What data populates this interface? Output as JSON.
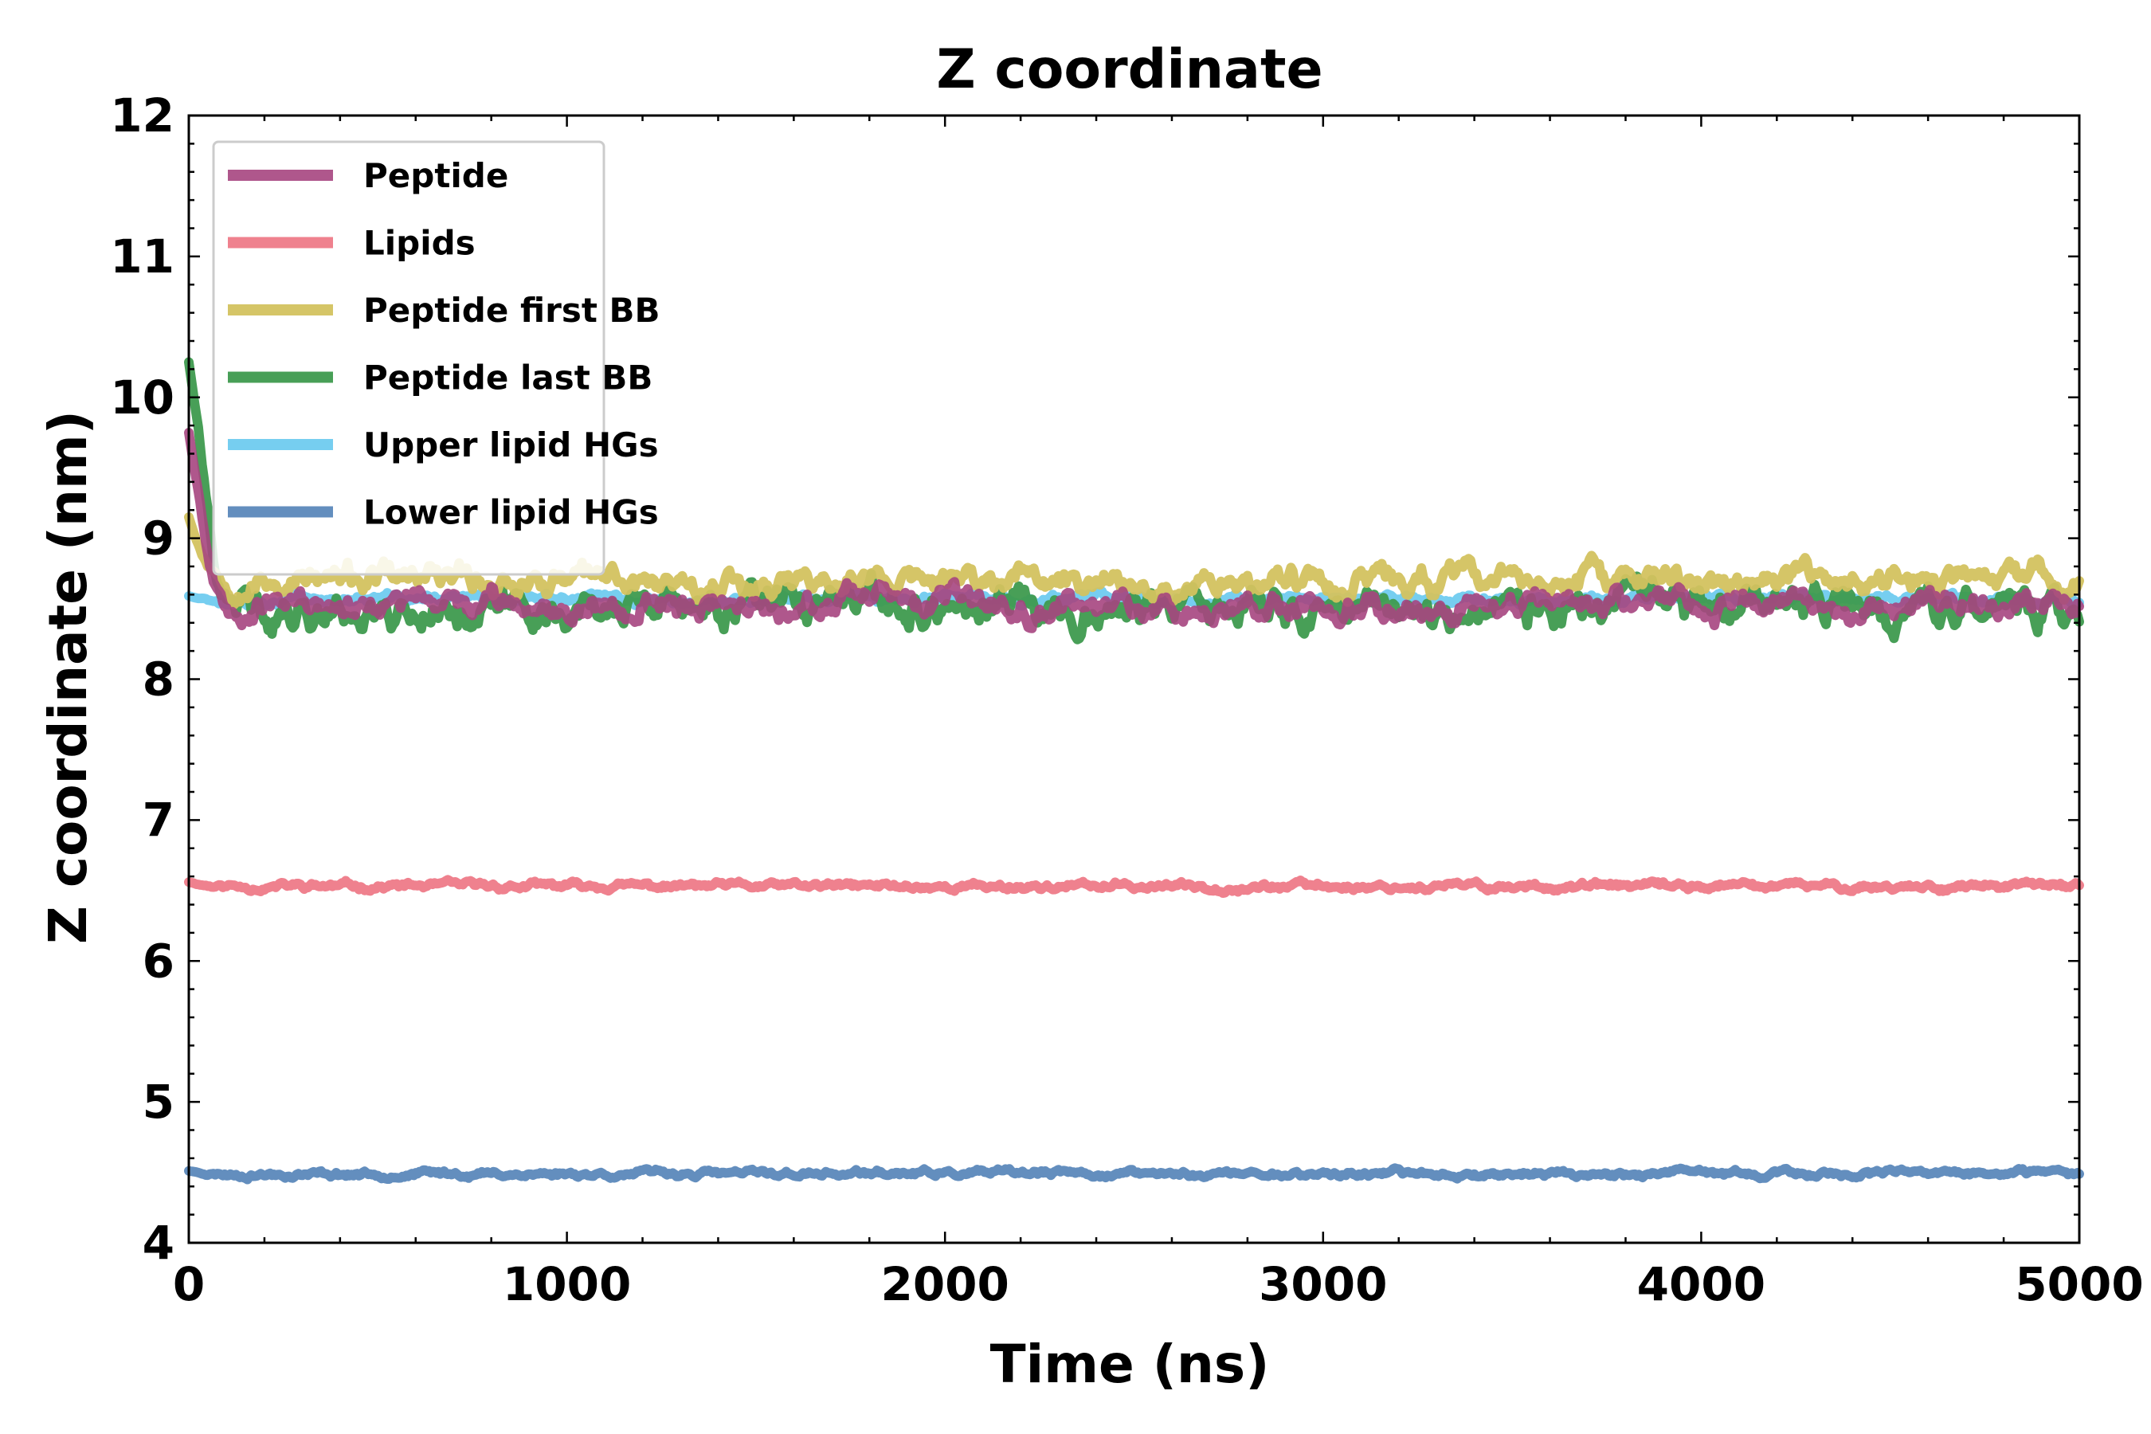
{
  "chart_data": {
    "type": "line",
    "title": "Z coordinate",
    "xlabel": "Time (ns)",
    "ylabel": "Z coordinate (nm)",
    "xlim": [
      0,
      5000
    ],
    "ylim": [
      4,
      12
    ],
    "x_ticks": [
      "0",
      "1000",
      "2000",
      "3000",
      "4000",
      "5000"
    ],
    "y_ticks": [
      "4",
      "5",
      "6",
      "7",
      "8",
      "9",
      "10",
      "11",
      "12"
    ],
    "grid": false,
    "legend_position": "top-left",
    "series": [
      {
        "name": "Lipids",
        "color": "#EE7A88",
        "width": 12,
        "opacity": 0.95,
        "base": 6.53,
        "amp": 0.025,
        "seed": 11,
        "start": [
          [
            0,
            6.56
          ],
          [
            100,
            6.53
          ]
        ]
      },
      {
        "name": "Lower lipid HGs",
        "color": "#5B88BA",
        "width": 12,
        "opacity": 0.95,
        "base": 4.49,
        "amp": 0.022,
        "seed": 23,
        "start": [
          [
            0,
            4.51
          ],
          [
            100,
            4.49
          ]
        ]
      },
      {
        "name": "Upper lipid HGs",
        "color": "#6FCBEF",
        "width": 12,
        "opacity": 0.95,
        "base": 8.57,
        "amp": 0.03,
        "seed": 37,
        "start": [
          [
            0,
            8.59
          ],
          [
            100,
            8.57
          ]
        ]
      },
      {
        "name": "Peptide last BB",
        "color": "#3E9A4E",
        "width": 12,
        "opacity": 0.95,
        "base": 8.5,
        "amp": 0.12,
        "seed": 41,
        "start": [
          [
            0,
            10.25
          ],
          [
            25,
            10.1
          ],
          [
            50,
            9.6
          ],
          [
            70,
            8.9
          ],
          [
            90,
            8.55
          ],
          [
            130,
            8.35
          ]
        ]
      },
      {
        "name": "Peptide first BB",
        "color": "#D3C25F",
        "width": 12,
        "opacity": 0.95,
        "base": 8.7,
        "amp": 0.09,
        "seed": 53,
        "start": [
          [
            0,
            9.15
          ],
          [
            40,
            8.95
          ],
          [
            80,
            8.8
          ],
          [
            130,
            8.7
          ]
        ]
      },
      {
        "name": "Peptide",
        "color": "#A6457F",
        "width": 12,
        "opacity": 0.9,
        "base": 8.53,
        "amp": 0.085,
        "seed": 67,
        "start": [
          [
            0,
            9.75
          ],
          [
            30,
            9.5
          ],
          [
            60,
            8.95
          ],
          [
            90,
            8.6
          ],
          [
            130,
            8.5
          ]
        ]
      }
    ],
    "legend_order": [
      "Peptide",
      "Lipids",
      "Peptide first BB",
      "Peptide last BB",
      "Upper lipid HGs",
      "Lower lipid HGs"
    ]
  }
}
